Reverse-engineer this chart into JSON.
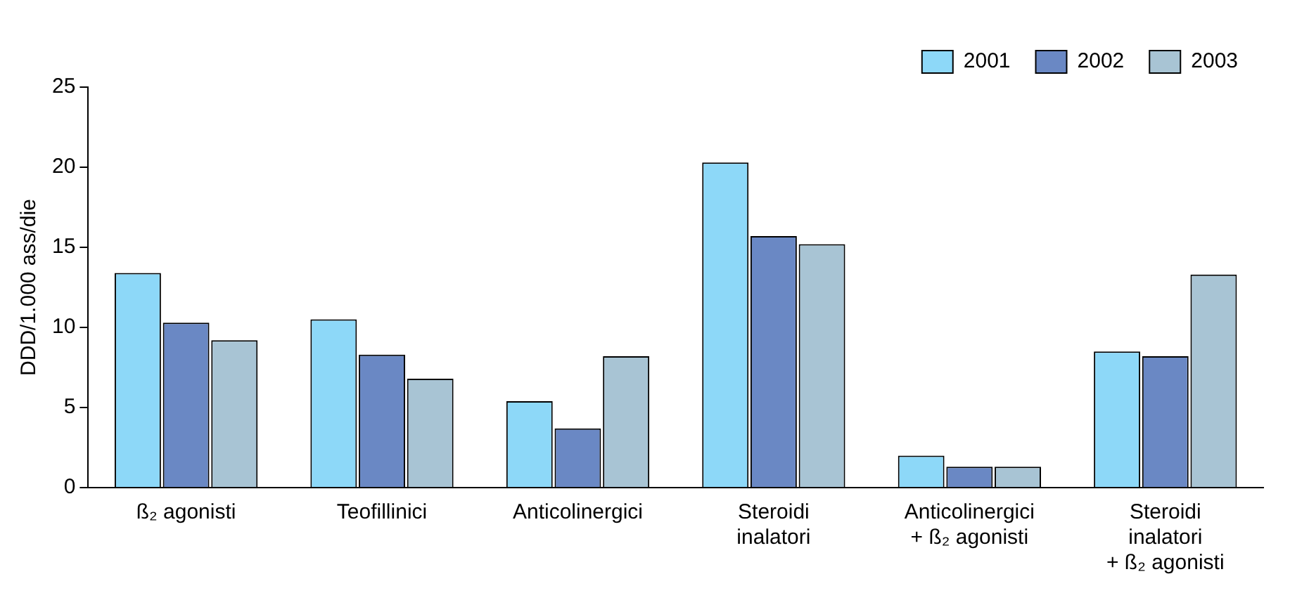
{
  "chart_data": {
    "type": "bar",
    "ylabel": "DDD/1.000 ass/die",
    "categories": [
      "ß₂ agonisti",
      "Teofillinici",
      "Anticolinergici",
      "Steroidi\ninalatori",
      "Anticolinergici\n+ ß₂ agonisti",
      "Steroidi\ninalatori\n+ ß₂ agonisti"
    ],
    "series": [
      {
        "name": "2001",
        "color": "#8dd8f8",
        "values": [
          13.4,
          10.5,
          5.4,
          20.3,
          2.0,
          8.5
        ]
      },
      {
        "name": "2002",
        "color": "#6a88c4",
        "values": [
          10.3,
          8.3,
          3.7,
          15.7,
          1.3,
          8.2
        ]
      },
      {
        "name": "2003",
        "color": "#a8c4d4",
        "values": [
          9.2,
          6.8,
          8.2,
          15.2,
          1.3,
          13.3
        ]
      }
    ],
    "ylim": [
      0,
      25
    ],
    "yticks": [
      0,
      5,
      10,
      15,
      20,
      25
    ],
    "grid": false,
    "legend": "top right"
  }
}
